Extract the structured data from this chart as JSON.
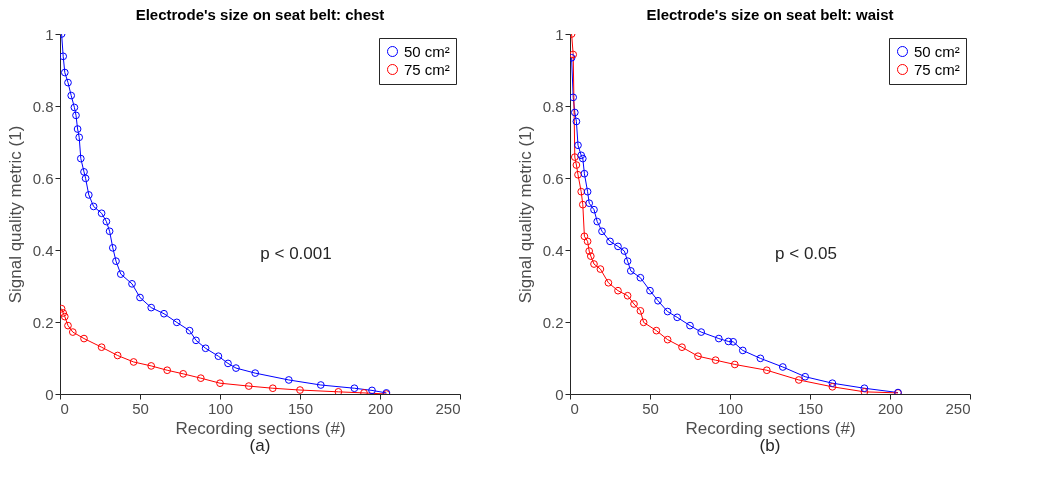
{
  "chart_data": [
    {
      "type": "line",
      "title": "Electrode's size on seat belt: chest",
      "xlabel": "Recording sections (#)",
      "ylabel": "Signal quality metric (1)",
      "xlim": [
        0,
        250
      ],
      "xticks": [
        0,
        50,
        100,
        150,
        200,
        250
      ],
      "ylim": [
        0,
        1
      ],
      "yticks": [
        0,
        0.2,
        0.4,
        0.6,
        0.8,
        1
      ],
      "grid": false,
      "legend": "top right",
      "marker": "circle",
      "line_style": "solid",
      "annotations": [
        "p < 0.001",
        "(a)"
      ],
      "series": [
        {
          "name": "50 cm²",
          "color": "#0000ff",
          "x": [
            1,
            2,
            3,
            5,
            7,
            9,
            10,
            11,
            12,
            13,
            15,
            16,
            18,
            21,
            26,
            29,
            31,
            33,
            35,
            38,
            45,
            50,
            57,
            65,
            73,
            81,
            85,
            91,
            99,
            105,
            110,
            122,
            143,
            163,
            184,
            195,
            204
          ],
          "values": [
            1.0,
            0.938,
            0.893,
            0.865,
            0.829,
            0.796,
            0.774,
            0.736,
            0.713,
            0.654,
            0.617,
            0.599,
            0.553,
            0.521,
            0.502,
            0.479,
            0.452,
            0.406,
            0.369,
            0.333,
            0.306,
            0.268,
            0.24,
            0.223,
            0.199,
            0.176,
            0.149,
            0.127,
            0.105,
            0.085,
            0.072,
            0.058,
            0.039,
            0.025,
            0.016,
            0.01,
            0.003
          ]
        },
        {
          "name": "75 cm²",
          "color": "#ff0000",
          "x": [
            1,
            2,
            3,
            5,
            8,
            15,
            26,
            36,
            46,
            57,
            67,
            77,
            88,
            100,
            118,
            133,
            150,
            174,
            190,
            204
          ],
          "values": [
            0.237,
            0.225,
            0.215,
            0.19,
            0.172,
            0.154,
            0.13,
            0.107,
            0.089,
            0.078,
            0.066,
            0.056,
            0.044,
            0.03,
            0.022,
            0.016,
            0.011,
            0.006,
            0.003,
            0.0
          ]
        }
      ]
    },
    {
      "type": "line",
      "title": "Electrode's size on seat belt: waist",
      "xlabel": "Recording sections (#)",
      "ylabel": "Signal quality metric (1)",
      "xlim": [
        0,
        250
      ],
      "xticks": [
        0,
        50,
        100,
        150,
        200,
        250
      ],
      "ylim": [
        0,
        1
      ],
      "yticks": [
        0,
        0.2,
        0.4,
        0.6,
        0.8,
        1
      ],
      "grid": false,
      "legend": "top right",
      "marker": "circle",
      "line_style": "solid",
      "annotations": [
        "p < 0.05",
        "(b)"
      ],
      "series": [
        {
          "name": "50 cm²",
          "color": "#0000ff",
          "x": [
            1,
            2,
            3,
            4,
            5,
            7,
            8,
            9,
            11,
            12,
            15,
            17,
            20,
            25,
            30,
            34,
            36,
            38,
            44,
            50,
            55,
            61,
            67,
            75,
            82,
            93,
            99,
            102,
            108,
            119,
            133,
            147,
            164,
            184,
            205
          ],
          "values": [
            0.934,
            0.824,
            0.782,
            0.757,
            0.691,
            0.663,
            0.654,
            0.612,
            0.562,
            0.53,
            0.512,
            0.479,
            0.452,
            0.424,
            0.41,
            0.397,
            0.369,
            0.342,
            0.323,
            0.287,
            0.259,
            0.229,
            0.213,
            0.19,
            0.172,
            0.154,
            0.146,
            0.145,
            0.121,
            0.099,
            0.075,
            0.048,
            0.03,
            0.016,
            0.004
          ]
        },
        {
          "name": "75 cm²",
          "color": "#ff0000",
          "x": [
            1,
            2,
            3,
            4,
            5,
            7,
            8,
            9,
            11,
            12,
            13,
            15,
            19,
            24,
            30,
            36,
            40,
            44,
            46,
            54,
            61,
            70,
            80,
            91,
            103,
            123,
            143,
            164,
            184,
            205
          ],
          "values": [
            1.0,
            0.943,
            0.658,
            0.636,
            0.609,
            0.562,
            0.526,
            0.438,
            0.424,
            0.397,
            0.383,
            0.361,
            0.347,
            0.309,
            0.287,
            0.273,
            0.25,
            0.231,
            0.199,
            0.176,
            0.151,
            0.13,
            0.105,
            0.094,
            0.082,
            0.066,
            0.039,
            0.02,
            0.006,
            0.003
          ]
        }
      ]
    }
  ]
}
